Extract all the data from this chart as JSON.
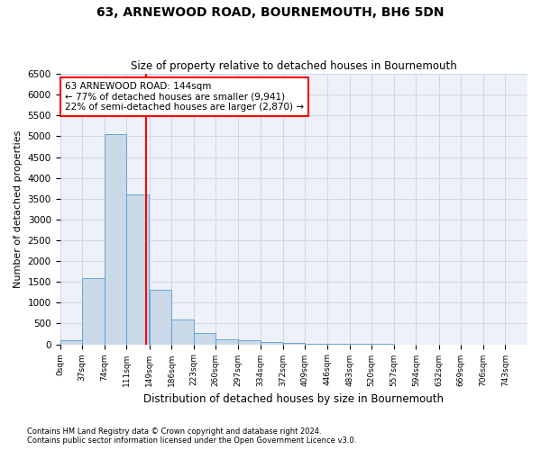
{
  "title": "63, ARNEWOOD ROAD, BOURNEMOUTH, BH6 5DN",
  "subtitle": "Size of property relative to detached houses in Bournemouth",
  "xlabel": "Distribution of detached houses by size in Bournemouth",
  "ylabel": "Number of detached properties",
  "bar_color": "#c9d9e8",
  "bar_edge_color": "#5b9bd5",
  "grid_color": "#d0d8e8",
  "background_color": "#eef2f8",
  "vline_x": 144,
  "vline_color": "red",
  "annotation_line1": "63 ARNEWOOD ROAD: 144sqm",
  "annotation_line2": "← 77% of detached houses are smaller (9,941)",
  "annotation_line3": "22% of semi-detached houses are larger (2,870) →",
  "annotation_box_color": "white",
  "annotation_edge_color": "red",
  "bins": [
    0,
    37,
    74,
    111,
    149,
    186,
    223,
    260,
    297,
    334,
    372,
    409,
    446,
    483,
    520,
    557,
    594,
    632,
    669,
    706,
    743
  ],
  "bar_heights": [
    100,
    1600,
    5050,
    3600,
    1300,
    600,
    270,
    130,
    100,
    60,
    30,
    10,
    5,
    3,
    2,
    1,
    0,
    0,
    0,
    0
  ],
  "ylim": [
    0,
    6500
  ],
  "yticks": [
    0,
    500,
    1000,
    1500,
    2000,
    2500,
    3000,
    3500,
    4000,
    4500,
    5000,
    5500,
    6000,
    6500
  ],
  "footnote1": "Contains HM Land Registry data © Crown copyright and database right 2024.",
  "footnote2": "Contains public sector information licensed under the Open Government Licence v3.0."
}
